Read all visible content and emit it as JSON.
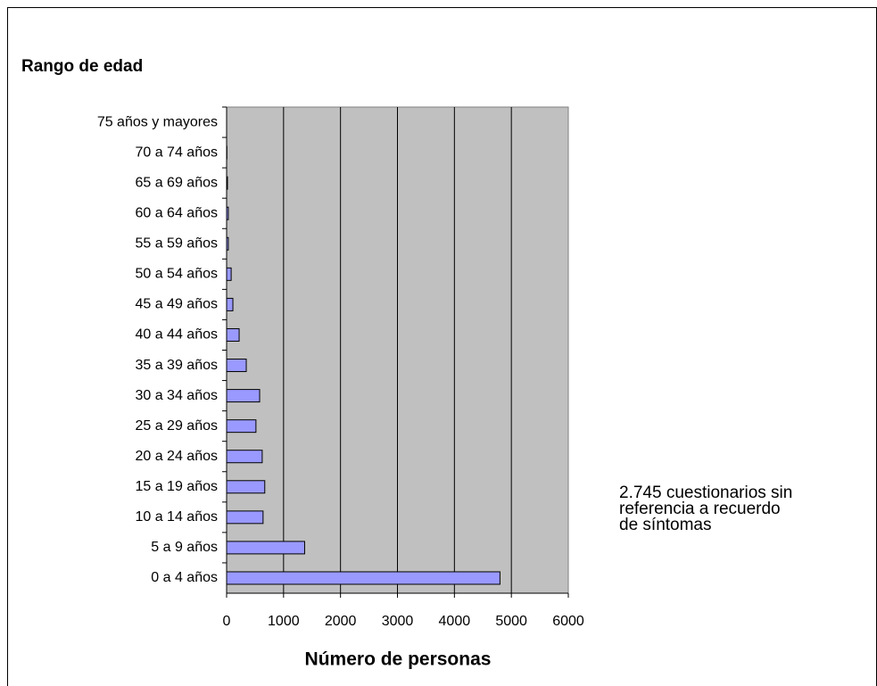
{
  "chart_data": {
    "type": "bar",
    "orientation": "horizontal",
    "title": "Rango de edad",
    "x_label": "Número de personas",
    "annotation": [
      "2.745 cuestionarios sin",
      "referencia a recuerdo",
      "de síntomas"
    ],
    "categories": [
      "75 años y mayores",
      "70 a 74 años",
      "65 a 69 años",
      "60 a 64 años",
      "55 a 59 años",
      "50 a 54 años",
      "45 a 49 años",
      "40 a 44 años",
      "35 a 39 años",
      "30 a 34 años",
      "25 a 29 años",
      "20 a 24 años",
      "15 a 19 años",
      "10 a 14 años",
      "5 a 9 años",
      "0 a 4 años"
    ],
    "values": [
      0,
      5,
      15,
      30,
      30,
      80,
      110,
      220,
      345,
      580,
      515,
      625,
      670,
      640,
      1370,
      4800
    ],
    "color": "#9999ff",
    "xlim": [
      0,
      6000
    ],
    "xticks": [
      0,
      1000,
      2000,
      3000,
      4000,
      5000,
      6000
    ],
    "grid": true
  }
}
